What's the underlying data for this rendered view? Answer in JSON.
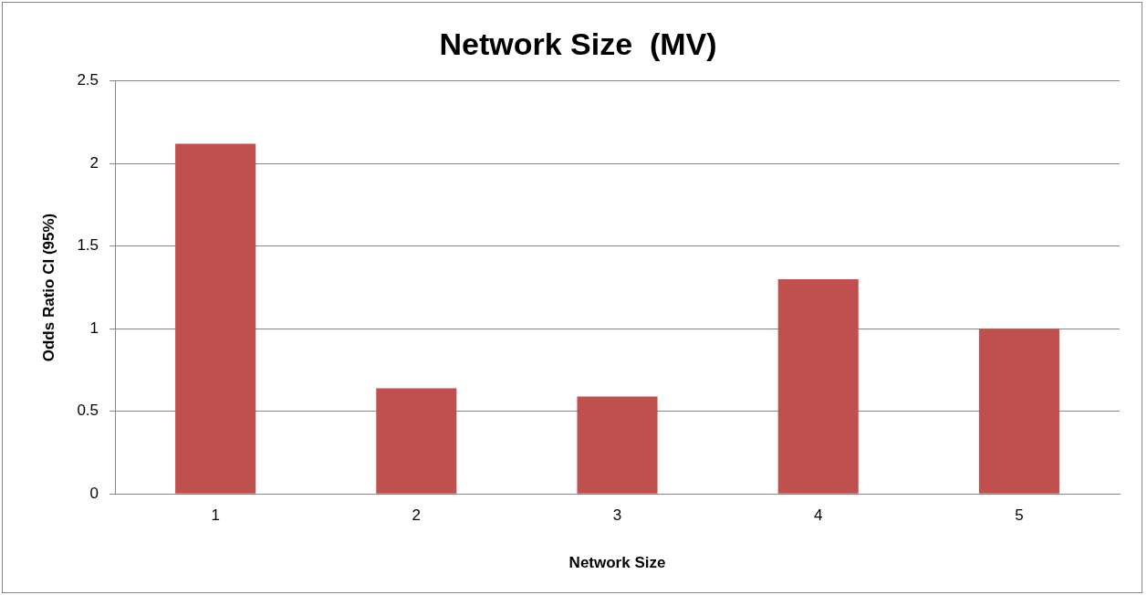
{
  "chart_data": {
    "type": "bar",
    "title": "Network Size  (MV)",
    "xlabel": "Network Size",
    "ylabel": "Odds Ratio CI (95%)",
    "categories": [
      "1",
      "2",
      "3",
      "4",
      "5"
    ],
    "values": [
      2.12,
      0.64,
      0.59,
      1.3,
      1.0
    ],
    "color": "#c0504d",
    "ylim": [
      0,
      2.5
    ],
    "yticks": [
      0,
      0.5,
      1,
      1.5,
      2,
      2.5
    ],
    "grid": "y",
    "legend": false
  }
}
